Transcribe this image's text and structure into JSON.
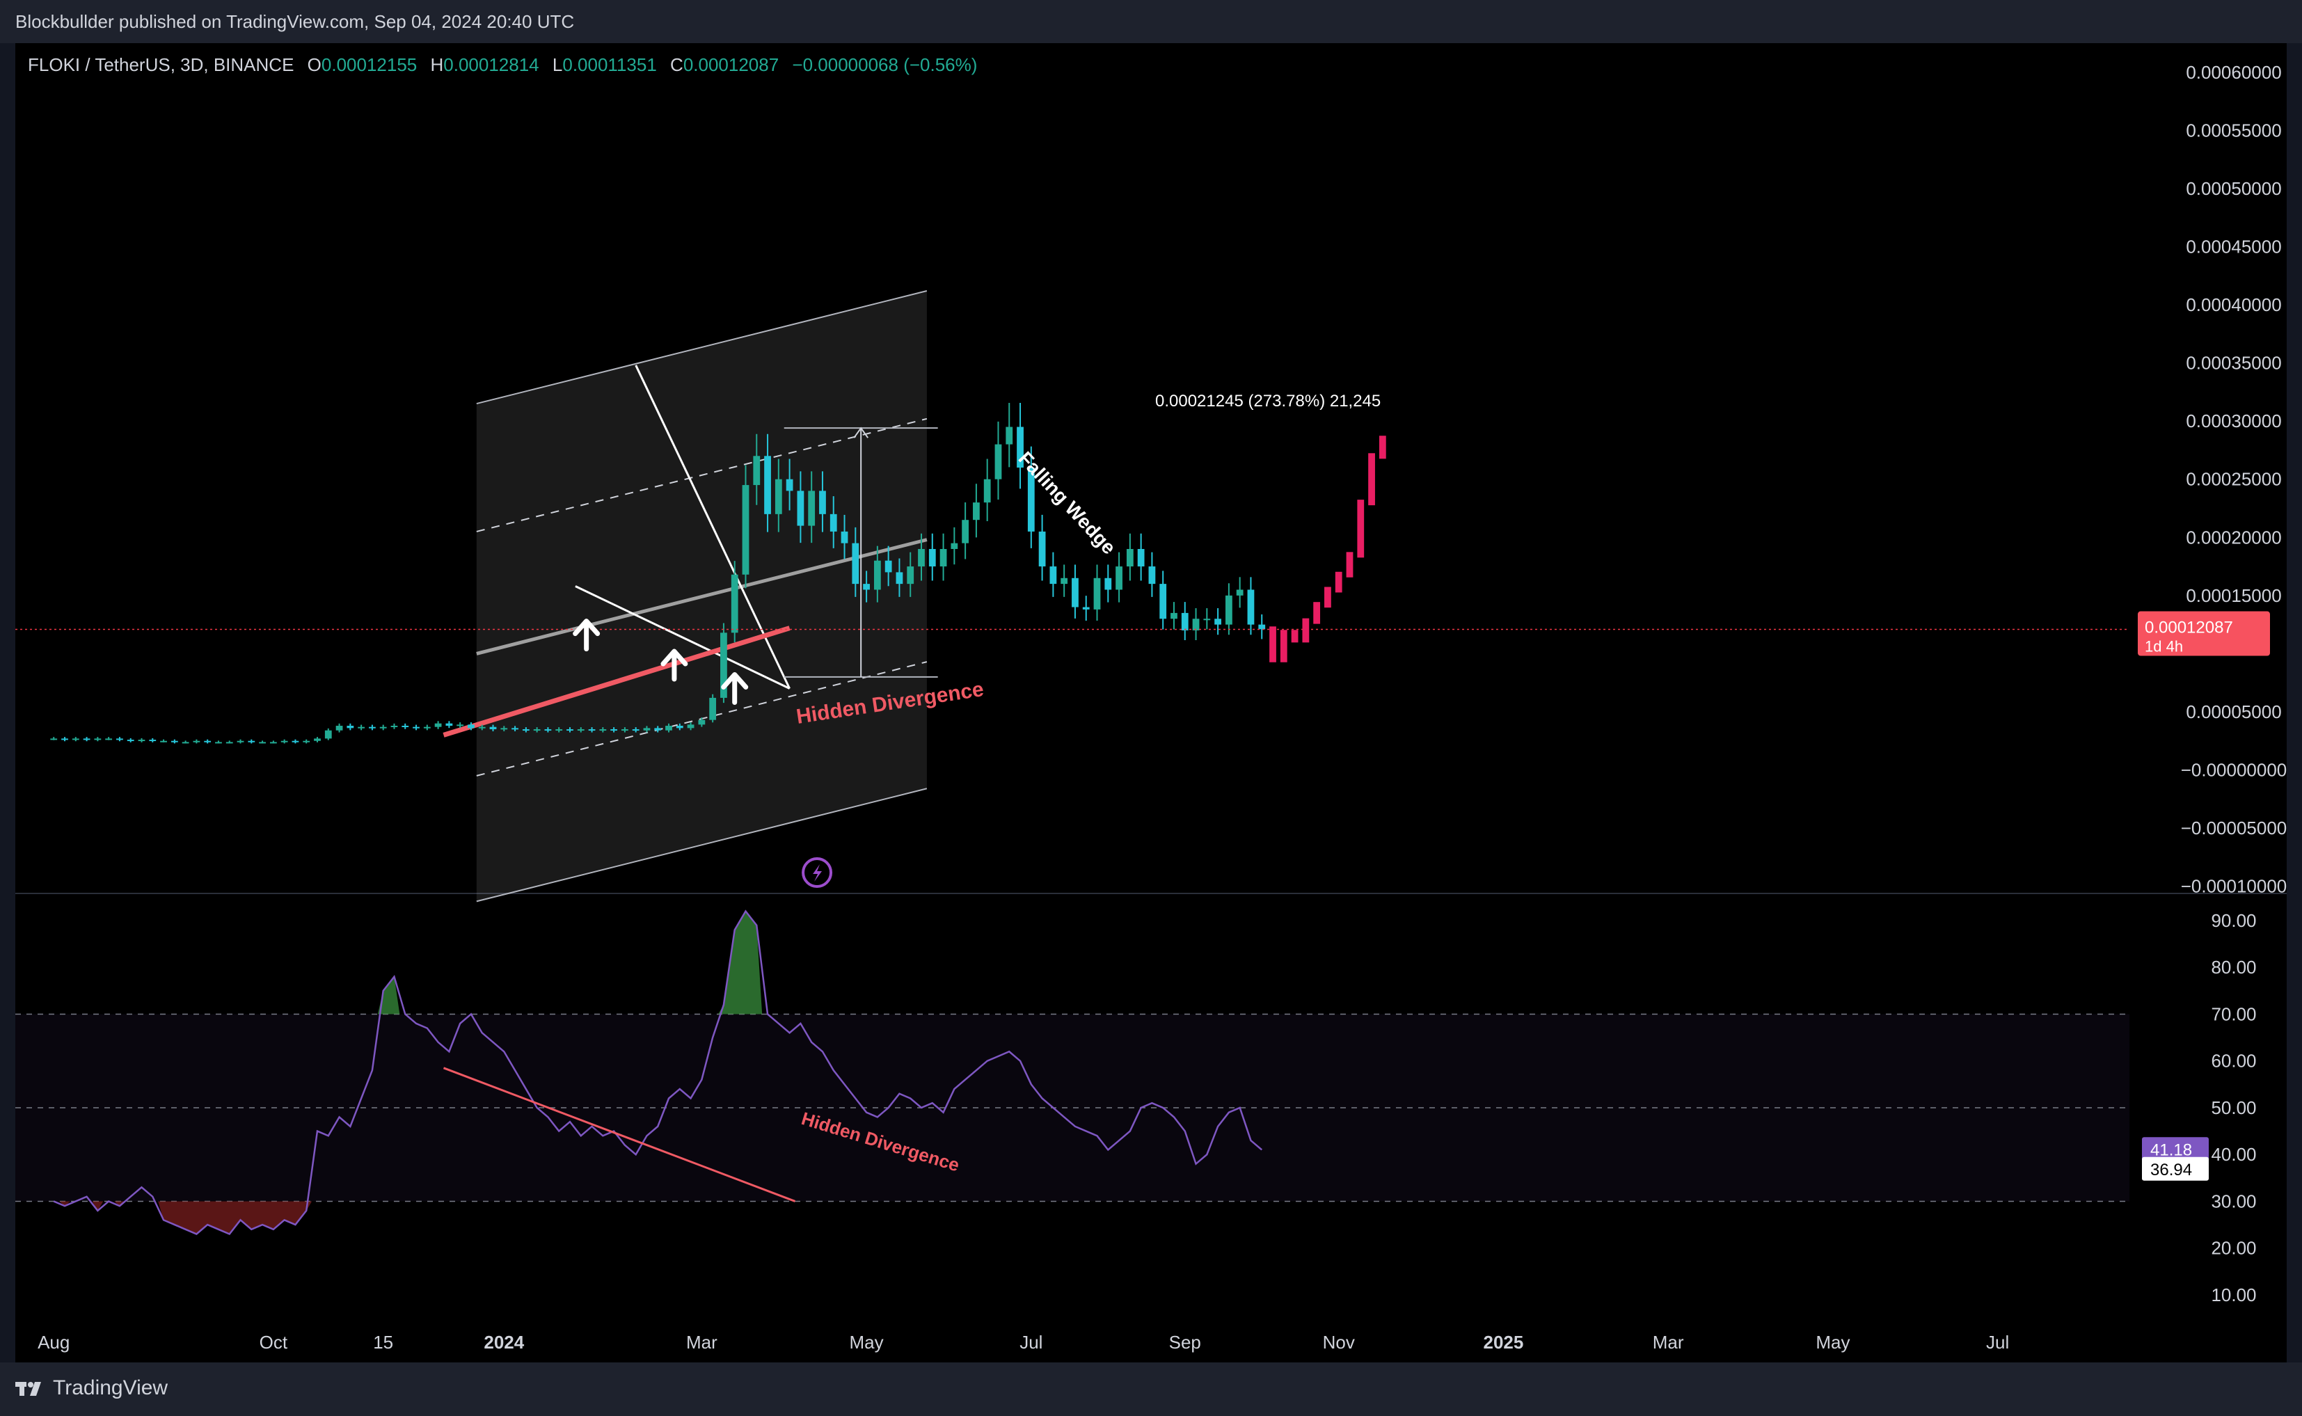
{
  "publisher": "Blockbullder published on TradingView.com, Sep 04, 2024 20:40 UTC",
  "brand": "TradingView",
  "legend": {
    "symbol": "FLOKI / TetherUS, 3D, BINANCE",
    "open_label": "O",
    "open": "0.00012155",
    "high_label": "H",
    "high": "0.00012814",
    "low_label": "L",
    "low": "0.00011351",
    "close_label": "C",
    "close": "0.00012087",
    "change": "−0.00000068 (−0.56%)"
  },
  "colors": {
    "background": "#000000",
    "frame": "#1e222d",
    "up": "#22ab94",
    "price_line": "#f23645",
    "projection": "#e91e63",
    "rsi": "#7e57c2",
    "divergence": "#f05a64"
  },
  "chart_data": [
    {
      "type": "candlestick",
      "title": "FLOKI / TetherUS, 3D, BINANCE",
      "y_tick_labels": [
        "0.00060000",
        "0.00055000",
        "0.00050000",
        "0.00045000",
        "0.00040000",
        "0.00035000",
        "0.00030000",
        "0.00025000",
        "0.00020000",
        "0.00015000",
        "0.00005000",
        "−0.00000000",
        "−0.00005000",
        "−0.00010000"
      ],
      "y_ticks": [
        0.0006,
        0.00055,
        0.0005,
        0.00045,
        0.0004,
        0.00035,
        0.0003,
        0.00025,
        0.0002,
        0.00015,
        5e-05,
        0,
        -5e-05,
        -0.0001
      ],
      "ylim": [
        -0.000105,
        0.000625
      ],
      "x_tick_labels": [
        "Aug",
        "Oct",
        "15",
        "2024",
        "Mar",
        "May",
        "Jul",
        "Sep",
        "Nov",
        "2025",
        "Mar",
        "May",
        "Jul"
      ],
      "x_ticks": [
        0,
        20,
        30,
        41,
        59,
        74,
        89,
        103,
        117,
        132,
        147,
        162,
        177
      ],
      "xlim": [
        -3.5,
        189
      ],
      "last_price": 0.00012087,
      "last_price_label": "0.00012087",
      "countdown": "1d 4h",
      "closes": [
        2.7e-05,
        2.6e-05,
        2.7e-05,
        2.6e-05,
        2.7e-05,
        2.7e-05,
        2.6e-05,
        2.5e-05,
        2.6e-05,
        2.5e-05,
        2.5e-05,
        2.4e-05,
        2.4e-05,
        2.5e-05,
        2.4e-05,
        2.4e-05,
        2.4e-05,
        2.5e-05,
        2.4e-05,
        2.4e-05,
        2.4e-05,
        2.5e-05,
        2.4e-05,
        2.5e-05,
        2.7e-05,
        3.4e-05,
        3.8e-05,
        3.6e-05,
        3.7e-05,
        3.6e-05,
        3.7e-05,
        3.8e-05,
        3.7e-05,
        3.6e-05,
        3.7e-05,
        4e-05,
        3.8e-05,
        3.9e-05,
        3.6e-05,
        3.7e-05,
        3.5e-05,
        3.6e-05,
        3.5e-05,
        3.4e-05,
        3.5e-05,
        3.4e-05,
        3.5e-05,
        3.4e-05,
        3.5e-05,
        3.4e-05,
        3.5e-05,
        3.4e-05,
        3.5e-05,
        3.4e-05,
        3.6e-05,
        3.4e-05,
        3.8e-05,
        3.6e-05,
        3.9e-05,
        4.3e-05,
        6.2e-05,
        0.000118,
        0.000168,
        0.000245,
        0.00027,
        0.00022,
        0.00025,
        0.00024,
        0.00021,
        0.00024,
        0.00022,
        0.000205,
        0.000195,
        0.00016,
        0.000155,
        0.00018,
        0.00017,
        0.00016,
        0.000175,
        0.00019,
        0.000175,
        0.00019,
        0.000195,
        0.000215,
        0.00023,
        0.00025,
        0.00028,
        0.000295,
        0.00026,
        0.000205,
        0.000175,
        0.00016,
        0.000165,
        0.00014,
        0.000138,
        0.000165,
        0.000155,
        0.000175,
        0.00019,
        0.000175,
        0.00016,
        0.00013,
        0.000135,
        0.00012,
        0.00013,
        0.00013,
        0.000125,
        0.00015,
        0.000155,
        0.000125,
        0.000121
      ],
      "projection_closes": [
        9.5e-05,
        0.000118,
        0.000112,
        0.000128,
        0.000142,
        0.000155,
        0.000168,
        0.000185,
        0.00023,
        0.00027,
        0.000285
      ],
      "rsi": {
        "title": "RSI",
        "y_tick_labels": [
          "90.00",
          "80.00",
          "70.00",
          "60.00",
          "50.00",
          "40.00",
          "30.00",
          "20.00",
          "10.00"
        ],
        "y_ticks": [
          90,
          80,
          70,
          60,
          50,
          40,
          30,
          20,
          10
        ],
        "ylim": [
          3,
          95.5
        ],
        "bands": [
          30,
          50,
          70
        ],
        "current": "41.18",
        "ma": "36.94",
        "values": [
          30,
          29,
          30,
          31,
          28,
          30,
          29,
          31,
          33,
          31,
          26,
          25,
          24,
          23,
          25,
          24,
          23,
          26,
          24,
          25,
          24,
          26,
          25,
          28,
          45,
          44,
          48,
          46,
          52,
          58,
          75,
          78,
          70,
          68,
          67,
          64,
          62,
          68,
          70,
          66,
          64,
          62,
          58,
          54,
          50,
          48,
          45,
          47,
          44,
          46,
          44,
          45,
          42,
          40,
          44,
          46,
          52,
          54,
          52,
          56,
          65,
          72,
          88,
          92,
          89,
          70,
          68,
          66,
          68,
          64,
          62,
          58,
          55,
          52,
          49,
          48,
          50,
          53,
          52,
          50,
          51,
          49,
          54,
          56,
          58,
          60,
          61,
          62,
          60,
          55,
          52,
          50,
          48,
          46,
          45,
          44,
          41,
          43,
          45,
          50,
          51,
          50,
          48,
          45,
          38,
          40,
          46,
          49,
          50,
          43,
          41
        ]
      },
      "annotations": [
        "Falling Wedge",
        "Hidden Divergence",
        "Hidden Divergence",
        "0.00021245 (273.78%) 21,245"
      ]
    }
  ]
}
